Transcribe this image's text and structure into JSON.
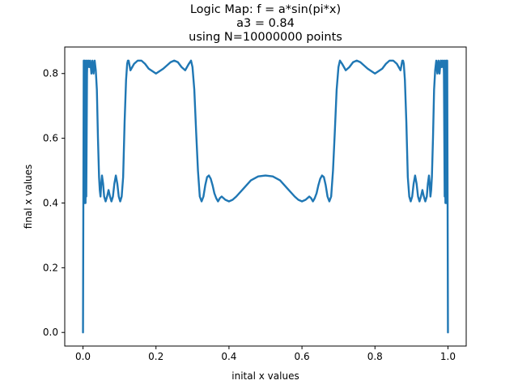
{
  "chart_data": {
    "type": "line",
    "title_lines": [
      "Logic Map: f = a*sin(pi*x)",
      "a3 = 0.84",
      "using N=10000000 points"
    ],
    "xlabel": "inital x values",
    "ylabel": "final x values",
    "xlim": [
      -0.05,
      1.05
    ],
    "ylim": [
      -0.042,
      0.882
    ],
    "xticks": [
      0.0,
      0.2,
      0.4,
      0.6,
      0.8,
      1.0
    ],
    "xtick_labels": [
      "0.0",
      "0.2",
      "0.4",
      "0.6",
      "0.8",
      "1.0"
    ],
    "yticks": [
      0.0,
      0.2,
      0.4,
      0.6,
      0.8
    ],
    "ytick_labels": [
      "0.0",
      "0.2",
      "0.4",
      "0.6",
      "0.8"
    ],
    "grid": false,
    "series": [
      {
        "color": "#1f77b4",
        "x": [
          0.0,
          0.002,
          0.003,
          0.004,
          0.005,
          0.006,
          0.007,
          0.008,
          0.009,
          0.01,
          0.011,
          0.012,
          0.014,
          0.016,
          0.018,
          0.02,
          0.023,
          0.026,
          0.029,
          0.032,
          0.035,
          0.038,
          0.041,
          0.044,
          0.046,
          0.048,
          0.05,
          0.052,
          0.055,
          0.058,
          0.062,
          0.066,
          0.07,
          0.074,
          0.078,
          0.082,
          0.086,
          0.09,
          0.094,
          0.098,
          0.102,
          0.106,
          0.11,
          0.114,
          0.118,
          0.121,
          0.123,
          0.125,
          0.13,
          0.14,
          0.15,
          0.16,
          0.17,
          0.18,
          0.2,
          0.22,
          0.24,
          0.25,
          0.26,
          0.27,
          0.28,
          0.29,
          0.296,
          0.3,
          0.305,
          0.31,
          0.315,
          0.32,
          0.325,
          0.33,
          0.335,
          0.34,
          0.345,
          0.35,
          0.355,
          0.36,
          0.365,
          0.37,
          0.375,
          0.38,
          0.39,
          0.4,
          0.41,
          0.42,
          0.44,
          0.46,
          0.48,
          0.5,
          0.52,
          0.54,
          0.56,
          0.58,
          0.59,
          0.6,
          0.61,
          0.62,
          0.625,
          0.63,
          0.635,
          0.64,
          0.645,
          0.65,
          0.655,
          0.66,
          0.665,
          0.67,
          0.675,
          0.68,
          0.685,
          0.69,
          0.695,
          0.7,
          0.704,
          0.71,
          0.72,
          0.73,
          0.74,
          0.75,
          0.76,
          0.78,
          0.8,
          0.82,
          0.83,
          0.84,
          0.85,
          0.86,
          0.87,
          0.875,
          0.877,
          0.879,
          0.882,
          0.886,
          0.89,
          0.894,
          0.898,
          0.902,
          0.906,
          0.91,
          0.914,
          0.918,
          0.922,
          0.926,
          0.93,
          0.934,
          0.938,
          0.942,
          0.945,
          0.948,
          0.95,
          0.952,
          0.954,
          0.956,
          0.959,
          0.962,
          0.965,
          0.968,
          0.971,
          0.974,
          0.977,
          0.98,
          0.982,
          0.984,
          0.986,
          0.988,
          0.989,
          0.99,
          0.991,
          0.992,
          0.993,
          0.994,
          0.995,
          0.996,
          0.997,
          0.998,
          1.0
        ],
        "y": [
          0.0,
          0.84,
          0.4,
          0.84,
          0.4,
          0.75,
          0.4,
          0.84,
          0.42,
          0.6,
          0.8,
          0.84,
          0.82,
          0.84,
          0.82,
          0.84,
          0.8,
          0.84,
          0.8,
          0.84,
          0.81,
          0.75,
          0.6,
          0.48,
          0.44,
          0.42,
          0.46,
          0.485,
          0.46,
          0.42,
          0.405,
          0.42,
          0.44,
          0.42,
          0.405,
          0.42,
          0.46,
          0.485,
          0.46,
          0.42,
          0.405,
          0.42,
          0.48,
          0.65,
          0.78,
          0.83,
          0.84,
          0.84,
          0.81,
          0.83,
          0.84,
          0.84,
          0.83,
          0.815,
          0.8,
          0.815,
          0.835,
          0.84,
          0.835,
          0.82,
          0.81,
          0.83,
          0.84,
          0.82,
          0.75,
          0.62,
          0.5,
          0.42,
          0.405,
          0.42,
          0.455,
          0.48,
          0.485,
          0.475,
          0.455,
          0.43,
          0.415,
          0.405,
          0.415,
          0.42,
          0.41,
          0.405,
          0.41,
          0.42,
          0.445,
          0.47,
          0.482,
          0.485,
          0.482,
          0.47,
          0.445,
          0.42,
          0.41,
          0.405,
          0.41,
          0.42,
          0.415,
          0.405,
          0.415,
          0.43,
          0.455,
          0.475,
          0.485,
          0.48,
          0.455,
          0.42,
          0.405,
          0.42,
          0.5,
          0.62,
          0.75,
          0.82,
          0.84,
          0.83,
          0.81,
          0.82,
          0.835,
          0.84,
          0.835,
          0.815,
          0.8,
          0.815,
          0.83,
          0.84,
          0.84,
          0.83,
          0.81,
          0.84,
          0.84,
          0.83,
          0.78,
          0.65,
          0.48,
          0.42,
          0.405,
          0.42,
          0.46,
          0.485,
          0.46,
          0.42,
          0.405,
          0.42,
          0.44,
          0.42,
          0.405,
          0.42,
          0.46,
          0.485,
          0.46,
          0.42,
          0.44,
          0.48,
          0.6,
          0.75,
          0.81,
          0.84,
          0.8,
          0.84,
          0.8,
          0.84,
          0.82,
          0.84,
          0.82,
          0.84,
          0.8,
          0.6,
          0.42,
          0.84,
          0.4,
          0.75,
          0.4,
          0.84,
          0.4,
          0.84,
          0.0
        ]
      }
    ]
  }
}
